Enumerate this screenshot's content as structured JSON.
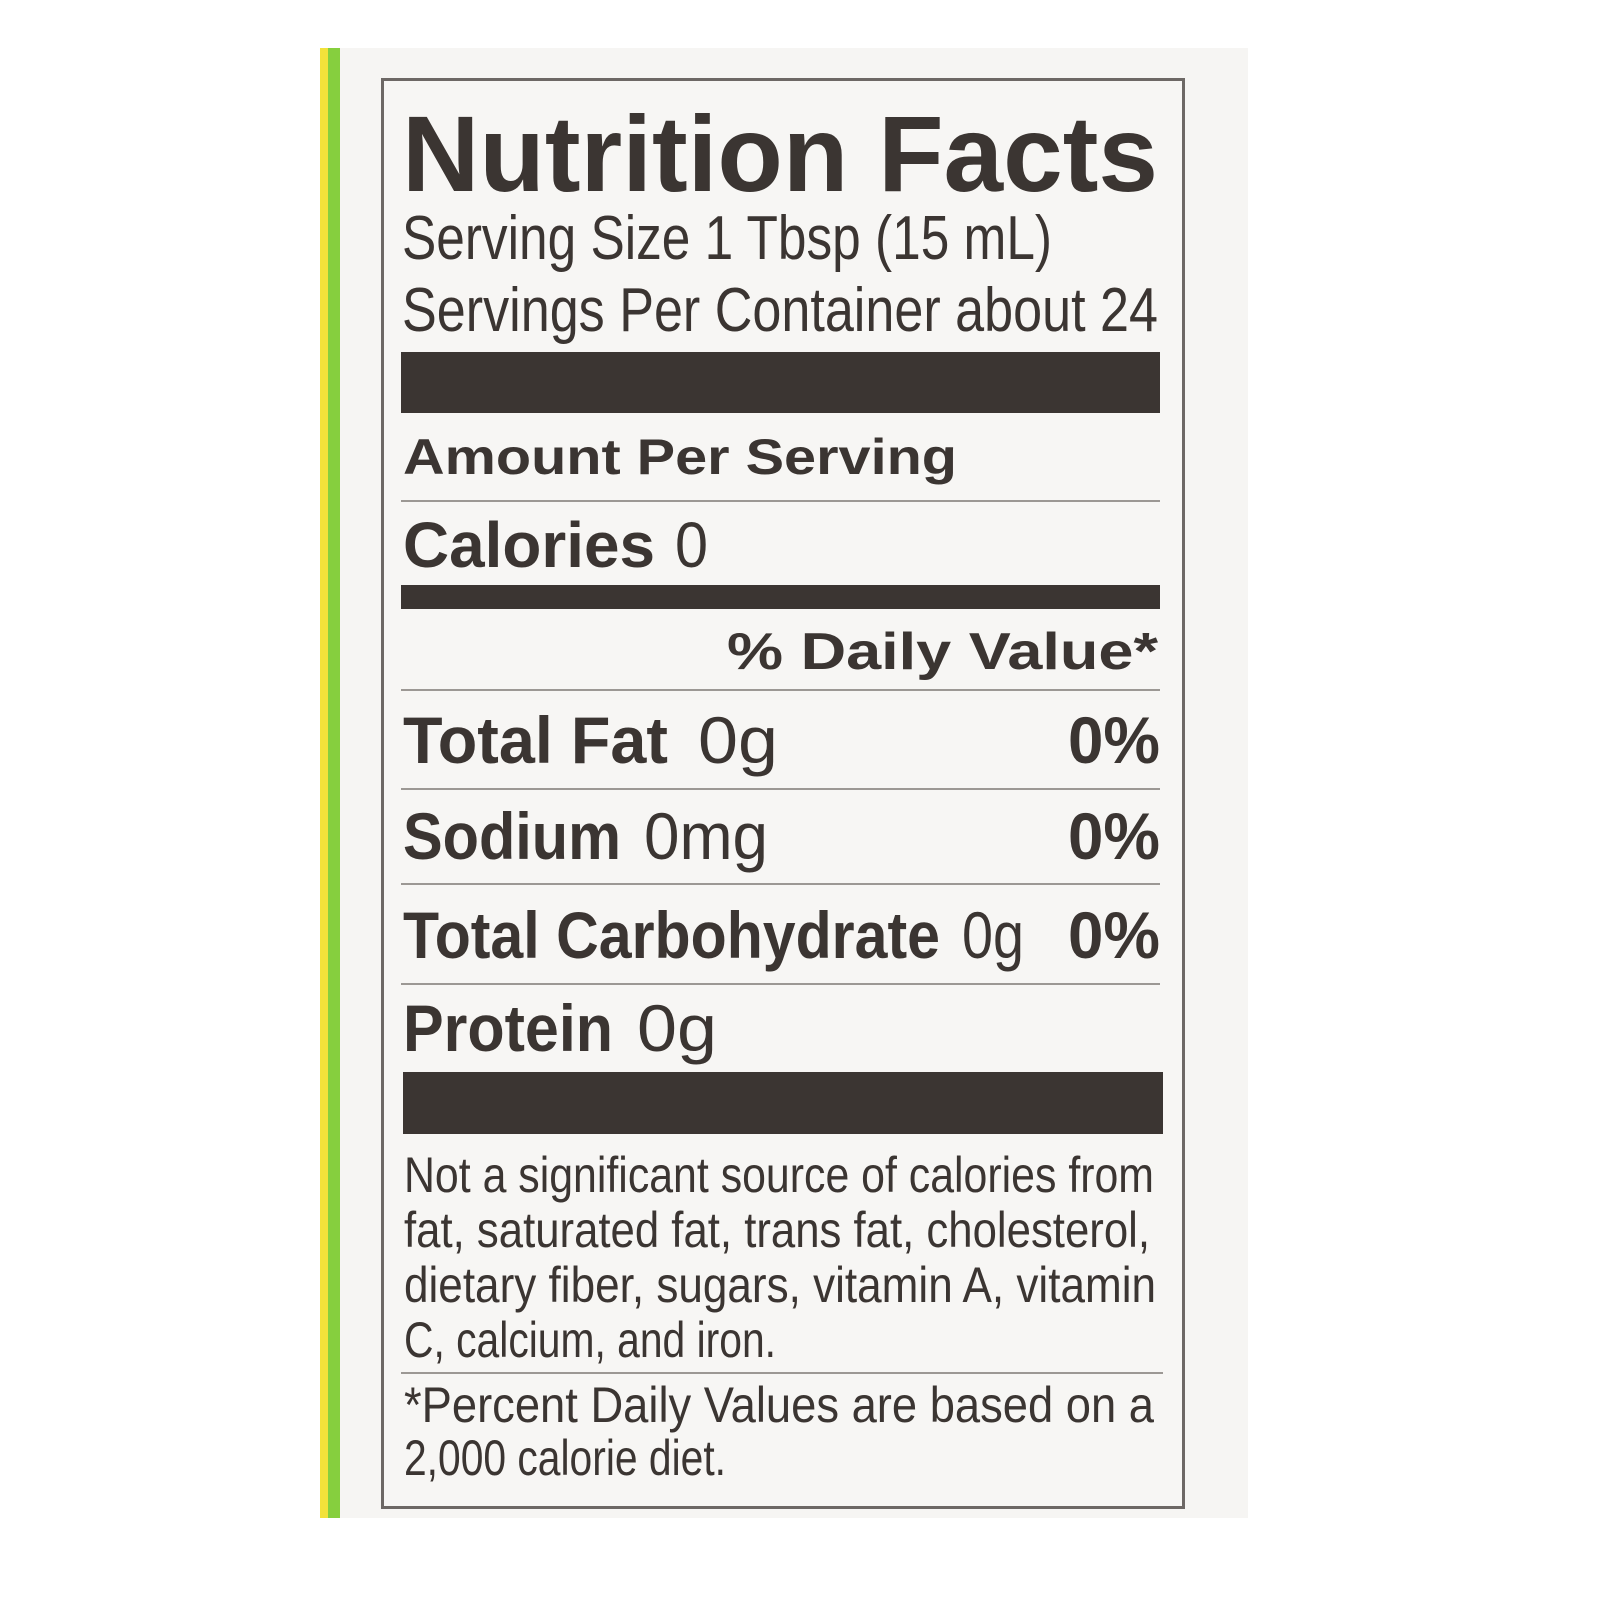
{
  "label": {
    "title": "Nutrition Facts",
    "serving_size": "Serving Size 1 Tbsp (15 mL)",
    "servings_per_container": "Servings Per Container about 24",
    "amount_per_serving": "Amount Per Serving",
    "calories": {
      "label": "Calories",
      "value": "0"
    },
    "daily_value_header": "% Daily Value*",
    "nutrients": [
      {
        "name": "Total Fat",
        "amount": "0g",
        "dv": "0%"
      },
      {
        "name": "Sodium",
        "amount": "0mg",
        "dv": "0%"
      },
      {
        "name": "Total Carbohydrate",
        "amount": "0g",
        "dv": "0%"
      },
      {
        "name": "Protein",
        "amount": "0g",
        "dv": ""
      }
    ],
    "footnote_lines": [
      "Not a significant source of calories from",
      "fat, saturated fat, trans fat, cholesterol,",
      "dietary fiber, sugars, vitamin A, vitamin",
      "C, calcium, and iron."
    ],
    "dv_footnote_lines": [
      "*Percent Daily Values are based on a",
      "2,000 calorie diet."
    ]
  },
  "colors": {
    "ink": "#3b3532",
    "package_green": "#86cf3e",
    "package_yellow": "#f2e23a"
  }
}
